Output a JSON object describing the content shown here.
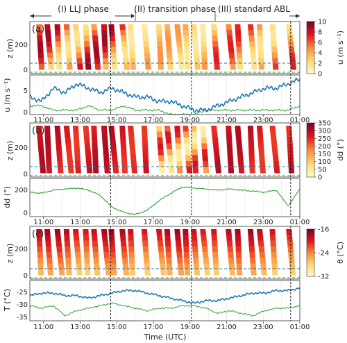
{
  "figure": {
    "xlabel": "Time (UTC)",
    "time_ticks": [
      "11:00",
      "13:00",
      "15:00",
      "17:00",
      "19:00",
      "21:00",
      "23:00",
      "01:00"
    ],
    "phases": [
      "(I) LLJ phase",
      "(II) transition phase",
      "(III) standard ABL"
    ],
    "colormap": [
      "#ffffcc",
      "#fed976",
      "#fd8d3c",
      "#e31a1c",
      "#800026"
    ],
    "line_colors": {
      "tower": "#1f77b4",
      "surface": "#2ca02c",
      "hline": "#1f77b4",
      "surface_hline": "#2ca02c"
    }
  },
  "chart_data": [
    {
      "type": "heatmap",
      "panel": "(a)",
      "ylabel": "z (m)",
      "yticks": [
        0,
        200
      ],
      "ylim": [
        0,
        350
      ],
      "colorbar": {
        "label": "u (m s⁻¹)",
        "ticks": [
          "10",
          "8",
          "6",
          "4",
          "2",
          "0"
        ]
      },
      "reference_lines_m": [
        60,
        8
      ],
      "vertical_markers_utc": [
        "14:40",
        "19:05",
        "00:30"
      ]
    },
    {
      "type": "line",
      "panel": "(a)",
      "ylabel": "u (m s⁻¹)",
      "yticks": [
        0,
        5
      ],
      "ylim": [
        0,
        9
      ],
      "x_range_utc": [
        "10:15",
        "01:00"
      ],
      "series_anchor_values": [
        {
          "color": "#1f77b4",
          "values": [
            4,
            3,
            6,
            5,
            7,
            6,
            5,
            6,
            5,
            4,
            4,
            3,
            3,
            2,
            1,
            1,
            2,
            3,
            4,
            5,
            6,
            6,
            7,
            8
          ]
        },
        {
          "color": "#2ca02c",
          "values": [
            2,
            2,
            1,
            1,
            1,
            2,
            1,
            1,
            2,
            1,
            1,
            1,
            0,
            0,
            0,
            1,
            1,
            1,
            1,
            1,
            1,
            1,
            1,
            2
          ]
        }
      ]
    },
    {
      "type": "heatmap",
      "panel": "(b)",
      "ylabel": "z (m)",
      "yticks": [
        0,
        200
      ],
      "ylim": [
        0,
        350
      ],
      "colorbar": {
        "label": "dd (°)",
        "ticks": [
          "350",
          "300",
          "250",
          "200",
          "150",
          "100",
          "50",
          "0"
        ]
      }
    },
    {
      "type": "line",
      "panel": "(b)",
      "ylabel": "dd (°)",
      "yticks": [
        0,
        200
      ],
      "ylim": [
        0,
        360
      ],
      "series_anchor_values": [
        {
          "color": "#2ca02c",
          "values": [
            230,
            220,
            250,
            260,
            270,
            250,
            200,
            90,
            40,
            20,
            60,
            150,
            220,
            280,
            270,
            260,
            250,
            260,
            250,
            240,
            230,
            250,
            100,
            260
          ]
        }
      ]
    },
    {
      "type": "heatmap",
      "panel": "(c)",
      "ylabel": "z (m)",
      "yticks": [
        0,
        200
      ],
      "ylim": [
        0,
        350
      ],
      "colorbar": {
        "label": "θ (°C)",
        "ticks": [
          "-16",
          "-24",
          "-32"
        ]
      }
    },
    {
      "type": "line",
      "panel": "(c)",
      "ylabel": "T (°C)",
      "yticks": [
        -35,
        -30,
        -25
      ],
      "ylim": [
        -36,
        -20
      ],
      "series_anchor_values": [
        {
          "color": "#1f77b4",
          "values": [
            -26,
            -25,
            -25,
            -26,
            -26,
            -27,
            -26,
            -25,
            -24,
            -24,
            -25,
            -26,
            -27,
            -28,
            -29,
            -28,
            -28,
            -27,
            -26,
            -25,
            -25,
            -24,
            -24,
            -23
          ]
        },
        {
          "color": "#2ca02c",
          "values": [
            -30,
            -31,
            -30,
            -34,
            -32,
            -31,
            -30,
            -29,
            -30,
            -31,
            -32,
            -31,
            -31,
            -30,
            -30,
            -31,
            -33,
            -32,
            -33,
            -34,
            -32,
            -31,
            -31,
            -30
          ]
        }
      ]
    }
  ]
}
